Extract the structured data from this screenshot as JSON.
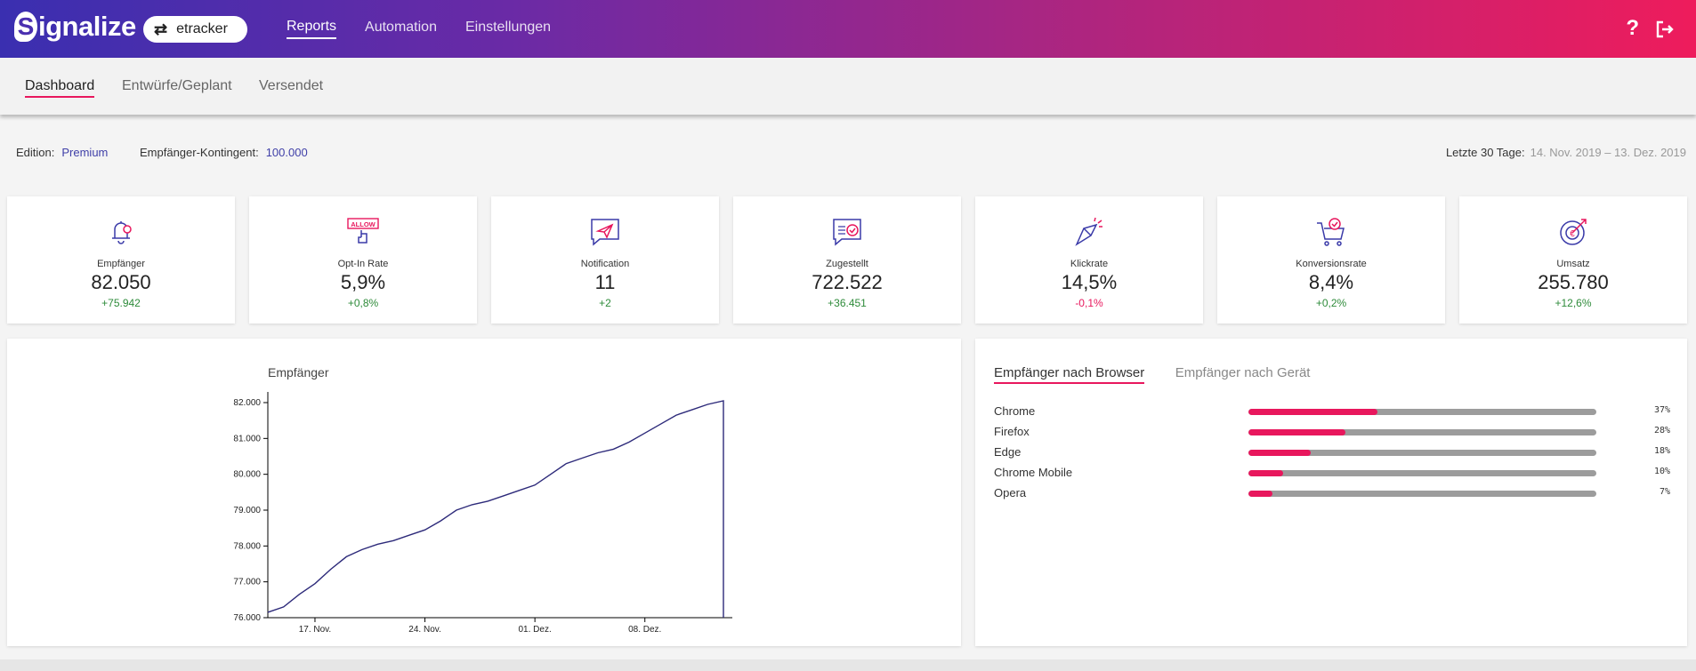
{
  "header": {
    "logo_mark": "S",
    "logo_text": "ignalize",
    "account": {
      "icon": "swap-arrows-icon",
      "label": "etracker"
    },
    "nav": [
      "Reports",
      "Automation",
      "Einstellungen"
    ],
    "help_icon": "?",
    "logout_icon": "⇥"
  },
  "subnav": [
    "Dashboard",
    "Entwürfe/Geplant",
    "Versendet"
  ],
  "info": {
    "edition_label": "Edition:",
    "edition_value": "Premium",
    "quota_label": "Empfänger-Kontingent:",
    "quota_value": "100.000",
    "period_label": "Letzte 30 Tage:",
    "period_value": "14. Nov. 2019 – 13. Dez. 2019"
  },
  "kpis": [
    {
      "icon": "bell-icon",
      "label": "Empfänger",
      "value": "82.050",
      "delta": "+75.942",
      "trend": "pos"
    },
    {
      "icon": "allow-hand-icon",
      "label": "Opt-In Rate",
      "value": "5,9%",
      "delta": "+0,8%",
      "trend": "pos",
      "badge": "ALLOW"
    },
    {
      "icon": "paper-plane-icon",
      "label": "Notification",
      "value": "11",
      "delta": "+2",
      "trend": "pos"
    },
    {
      "icon": "message-check-icon",
      "label": "Zugestellt",
      "value": "722.522",
      "delta": "+36.451",
      "trend": "pos"
    },
    {
      "icon": "cursor-click-icon",
      "label": "Klickrate",
      "value": "14,5%",
      "delta": "-0,1%",
      "trend": "neg"
    },
    {
      "icon": "cart-check-icon",
      "label": "Konversionsrate",
      "value": "8,4%",
      "delta": "+0,2%",
      "trend": "pos"
    },
    {
      "icon": "target-arrow-icon",
      "label": "Umsatz",
      "value": "255.780",
      "delta": "+12,6%",
      "trend": "pos"
    }
  ],
  "chart_data": {
    "type": "line",
    "title": "Empfänger",
    "x": [
      "14. Nov.",
      "15. Nov.",
      "16. Nov.",
      "17. Nov.",
      "18. Nov.",
      "19. Nov.",
      "20. Nov.",
      "21. Nov.",
      "22. Nov.",
      "23. Nov.",
      "24. Nov.",
      "25. Nov.",
      "26. Nov.",
      "27. Nov.",
      "28. Nov.",
      "29. Nov.",
      "30. Nov.",
      "01. Dez.",
      "02. Dez.",
      "03. Dez.",
      "04. Dez.",
      "05. Dez.",
      "06. Dez.",
      "07. Dez.",
      "08. Dez.",
      "09. Dez.",
      "10. Dez.",
      "11. Dez.",
      "12. Dez.",
      "13. Dez."
    ],
    "series": [
      {
        "values": [
          76150,
          76300,
          76650,
          76950,
          77350,
          77700,
          77900,
          78050,
          78150,
          78300,
          78450,
          78700,
          79000,
          79150,
          79250,
          79400,
          79550,
          79700,
          80000,
          80300,
          80450,
          80600,
          80700,
          80900,
          81150,
          81400,
          81650,
          81800,
          81950,
          82050
        ]
      }
    ],
    "xticks": [
      "17. Nov.",
      "24. Nov.",
      "01. Dez.",
      "08. Dez."
    ],
    "yticks": [
      "76.000",
      "77.000",
      "78.000",
      "79.000",
      "80.000",
      "81.000",
      "82.000"
    ],
    "ylim": [
      76000,
      82000
    ],
    "color": "#2d2a7a"
  },
  "browser_panel": {
    "tabs": [
      "Empfänger nach Browser",
      "Empfänger nach Gerät"
    ],
    "rows": [
      {
        "name": "Chrome",
        "pct": 37,
        "label": "37%"
      },
      {
        "name": "Firefox",
        "pct": 28,
        "label": "28%"
      },
      {
        "name": "Edge",
        "pct": 18,
        "label": "18%"
      },
      {
        "name": "Chrome Mobile",
        "pct": 10,
        "label": "10%"
      },
      {
        "name": "Opera",
        "pct": 7,
        "label": "7%"
      }
    ]
  },
  "colors": {
    "accent": "#e8175d",
    "brand_start": "#3a2fb0",
    "brand_end": "#ee1c5c",
    "positive": "#2e8b3a"
  }
}
